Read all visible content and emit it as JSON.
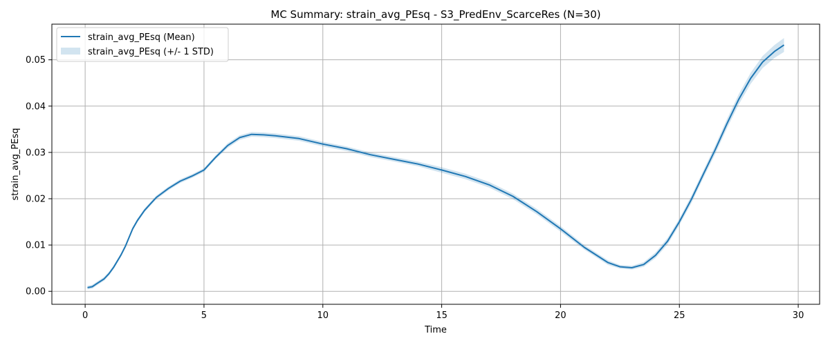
{
  "chart_data": {
    "type": "line",
    "title": "MC Summary: strain_avg_PEsq - S3_PredEnv_ScarceRes (N=30)",
    "xlabel": "Time",
    "ylabel": "strain_avg_PEsq",
    "xlim": [
      -1.4,
      30.9
    ],
    "ylim": [
      -0.0028,
      0.0577
    ],
    "xticks": [
      0,
      5,
      10,
      15,
      20,
      25,
      30
    ],
    "xtick_labels": [
      "0",
      "5",
      "10",
      "15",
      "20",
      "25",
      "30"
    ],
    "yticks": [
      0.0,
      0.01,
      0.02,
      0.03,
      0.04,
      0.05
    ],
    "ytick_labels": [
      "0.00",
      "0.01",
      "0.02",
      "0.03",
      "0.04",
      "0.05"
    ],
    "grid": true,
    "legend_position": "top-left",
    "colors": {
      "line": "#1f77b4",
      "band": "#1f77b4",
      "grid": "#b0b0b0"
    },
    "series": [
      {
        "name": "strain_avg_PEsq (Mean)",
        "x": [
          0.1,
          0.3,
          0.5,
          0.8,
          1.0,
          1.2,
          1.5,
          1.7,
          2.0,
          2.2,
          2.5,
          2.8,
          3.0,
          3.5,
          4.0,
          4.5,
          5.0,
          5.5,
          6.0,
          6.5,
          7.0,
          7.5,
          8.0,
          9.0,
          10.0,
          11.0,
          12.0,
          13.0,
          14.0,
          15.0,
          16.0,
          17.0,
          18.0,
          19.0,
          20.0,
          21.0,
          22.0,
          22.5,
          23.0,
          23.5,
          24.0,
          24.5,
          25.0,
          25.5,
          26.0,
          26.5,
          27.0,
          27.5,
          28.0,
          28.5,
          29.0,
          29.4
        ],
        "y": [
          0.0008,
          0.001,
          0.0017,
          0.0027,
          0.0038,
          0.0052,
          0.0078,
          0.0098,
          0.0135,
          0.0153,
          0.0175,
          0.0192,
          0.0203,
          0.0222,
          0.0238,
          0.0249,
          0.0262,
          0.029,
          0.0315,
          0.0332,
          0.0339,
          0.0338,
          0.0336,
          0.033,
          0.0318,
          0.0308,
          0.0295,
          0.0285,
          0.0275,
          0.0262,
          0.0248,
          0.023,
          0.0205,
          0.0172,
          0.0135,
          0.0095,
          0.0062,
          0.0053,
          0.0051,
          0.0058,
          0.0078,
          0.0108,
          0.015,
          0.0198,
          0.0252,
          0.0305,
          0.0362,
          0.0415,
          0.046,
          0.0495,
          0.0518,
          0.0532
        ],
        "std": [
          0.0004,
          0.0004,
          0.0004,
          0.0004,
          0.0004,
          0.0004,
          0.0004,
          0.0004,
          0.0004,
          0.0004,
          0.0004,
          0.0004,
          0.0004,
          0.0004,
          0.0004,
          0.0004,
          0.0004,
          0.0004,
          0.0005,
          0.0005,
          0.0005,
          0.0005,
          0.0005,
          0.0005,
          0.0005,
          0.0005,
          0.0005,
          0.0005,
          0.0005,
          0.0006,
          0.0006,
          0.0006,
          0.0006,
          0.0006,
          0.0006,
          0.0005,
          0.0005,
          0.0004,
          0.0004,
          0.0005,
          0.0006,
          0.0007,
          0.0007,
          0.0008,
          0.0008,
          0.0009,
          0.001,
          0.0011,
          0.0012,
          0.0013,
          0.0014,
          0.0015
        ]
      },
      {
        "name": "strain_avg_PEsq (+/- 1 STD)"
      }
    ]
  }
}
